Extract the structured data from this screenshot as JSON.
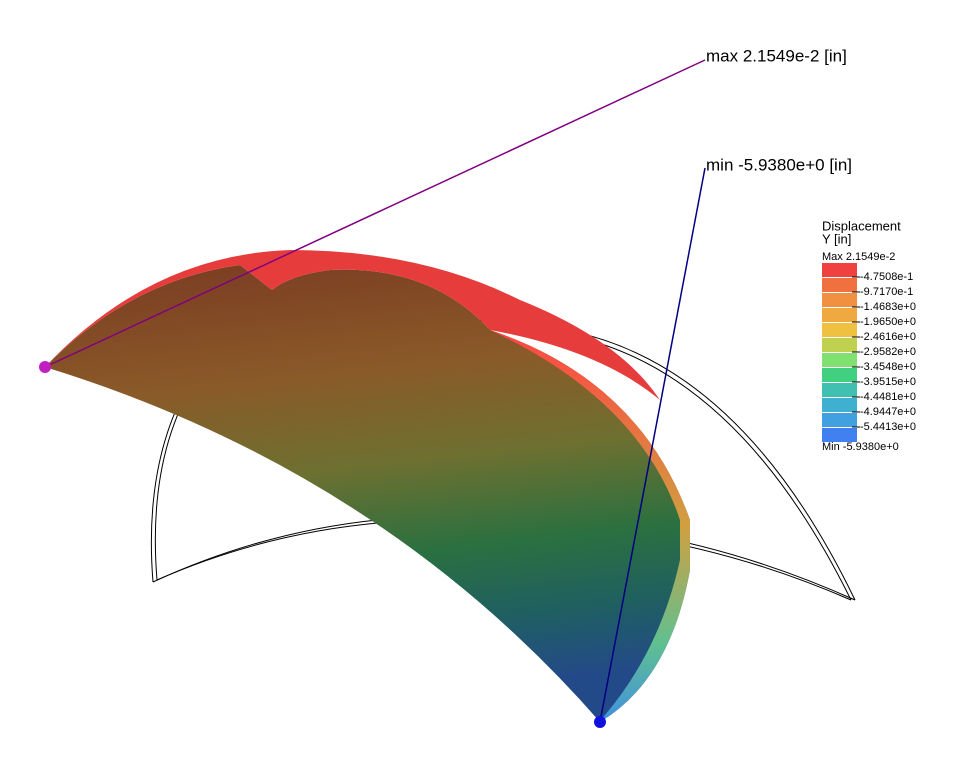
{
  "annotations": {
    "max": "max  2.1549e-2  [in]",
    "min": "min  -5.9380e+0  [in]"
  },
  "legend": {
    "title": "Displacement",
    "subtitle": "Y [in]",
    "max": "Max  2.1549e-2",
    "min": "Min  -5.9380e+0",
    "entries": [
      {
        "label": "-4.7508e-1",
        "color": "#f04040"
      },
      {
        "label": "-9.7170e-1",
        "color": "#f07040"
      },
      {
        "label": "-1.4683e+0",
        "color": "#f09040"
      },
      {
        "label": "-1.9650e+0",
        "color": "#f0a840"
      },
      {
        "label": "-2.4616e+0",
        "color": "#f0c040"
      },
      {
        "label": "-2.9582e+0",
        "color": "#c0d050"
      },
      {
        "label": "-3.4548e+0",
        "color": "#80e070"
      },
      {
        "label": "-3.9515e+0",
        "color": "#40d080"
      },
      {
        "label": "-4.4481e+0",
        "color": "#40c0b0"
      },
      {
        "label": "-4.9447e+0",
        "color": "#40b0d0"
      },
      {
        "label": "-5.4413e+0",
        "color": "#40a0e0"
      },
      {
        "label": "",
        "color": "#4080f0"
      }
    ]
  }
}
